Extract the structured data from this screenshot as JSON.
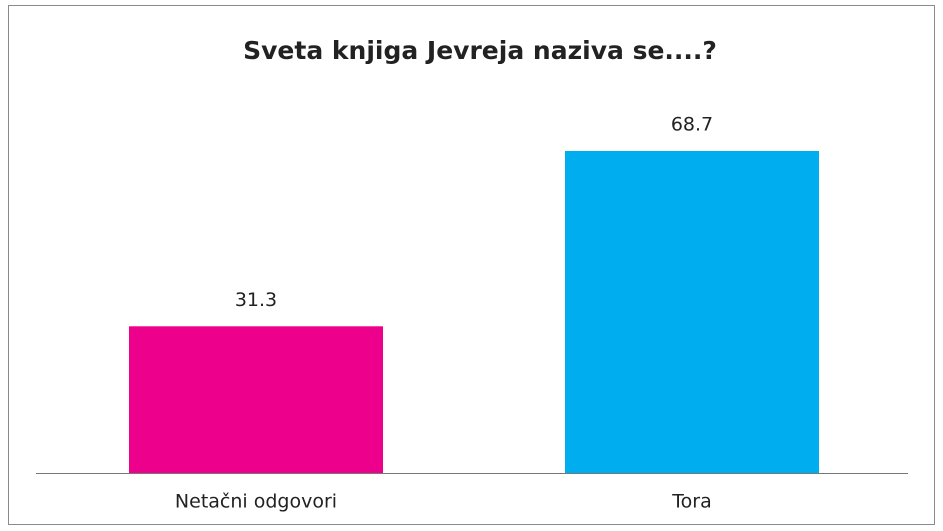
{
  "chart_data": {
    "type": "bar",
    "title": "Sveta knjiga Jevreja naziva se....?",
    "categories": [
      "Netačni odgovori",
      "Tora"
    ],
    "values": [
      31.3,
      68.7
    ],
    "colors": [
      "#ec008c",
      "#00aeef"
    ]
  }
}
